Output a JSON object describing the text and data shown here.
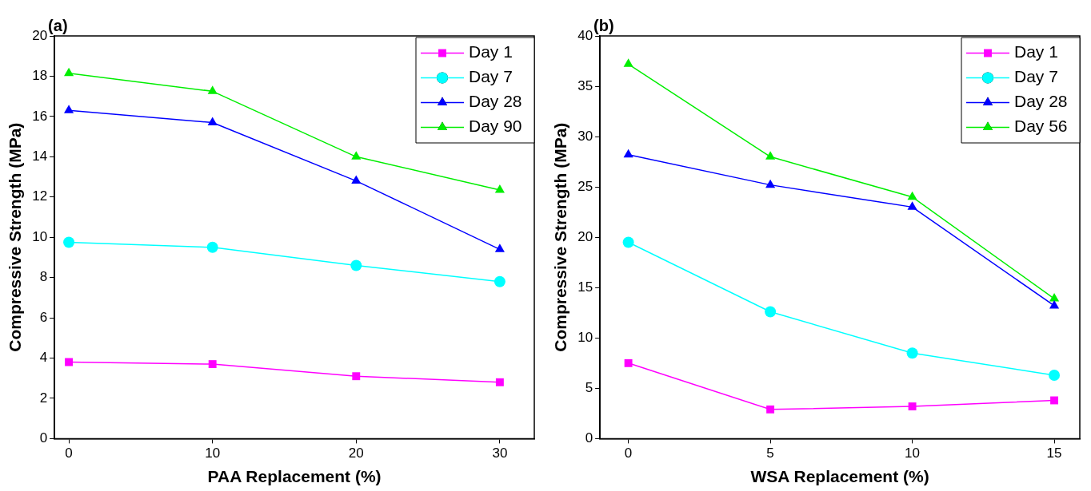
{
  "chart_data": [
    {
      "type": "line",
      "title": "(a)",
      "xlabel": "PAA Replacement (%)",
      "ylabel": "Compressive Strength (MPa)",
      "x": [
        0,
        10,
        20,
        30
      ],
      "xlim": [
        -1,
        32.4
      ],
      "xticks": [
        0,
        10,
        20,
        30
      ],
      "ylim": [
        0,
        20
      ],
      "yticks": [
        0,
        2,
        4,
        6,
        8,
        10,
        12,
        14,
        16,
        18,
        20
      ],
      "grid": false,
      "legend": "top right",
      "series": [
        {
          "name": "Day 1",
          "color": "#ff00ff",
          "marker": "square",
          "values": [
            3.8,
            3.7,
            3.1,
            2.8
          ]
        },
        {
          "name": "Day 7",
          "color": "#00ffff",
          "marker": "circle",
          "values": [
            9.75,
            9.5,
            8.6,
            7.8
          ]
        },
        {
          "name": "Day 28",
          "color": "#0000ff",
          "marker": "triangle",
          "values": [
            16.3,
            15.7,
            12.8,
            9.4
          ]
        },
        {
          "name": "Day 90",
          "color": "#00ee00",
          "marker": "triangle",
          "values": [
            18.15,
            17.25,
            14.0,
            12.35
          ]
        }
      ]
    },
    {
      "type": "line",
      "title": "(b)",
      "xlabel": "WSA Replacement (%)",
      "ylabel": "Compressive Strength (MPa)",
      "x": [
        0,
        5,
        10,
        15
      ],
      "xlim": [
        -1,
        15.9
      ],
      "xticks": [
        0,
        5,
        10,
        15
      ],
      "ylim": [
        0,
        40
      ],
      "yticks": [
        0,
        5,
        10,
        15,
        20,
        25,
        30,
        35,
        40
      ],
      "grid": false,
      "legend": "top right",
      "series": [
        {
          "name": "Day 1",
          "color": "#ff00ff",
          "marker": "square",
          "values": [
            7.5,
            2.9,
            3.2,
            3.8
          ]
        },
        {
          "name": "Day 7",
          "color": "#00ffff",
          "marker": "circle",
          "values": [
            19.5,
            12.6,
            8.5,
            6.3
          ]
        },
        {
          "name": "Day 28",
          "color": "#0000ff",
          "marker": "triangle",
          "values": [
            28.2,
            25.2,
            23.0,
            13.2
          ]
        },
        {
          "name": "Day 56",
          "color": "#00ee00",
          "marker": "triangle",
          "values": [
            37.2,
            28.0,
            24.0,
            13.9
          ]
        }
      ]
    }
  ]
}
